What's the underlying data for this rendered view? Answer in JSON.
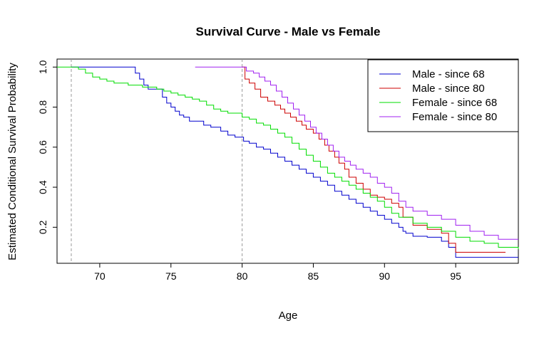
{
  "chart_data": {
    "type": "line",
    "title": "Survival Curve - Male vs Female",
    "xlabel": "Age",
    "ylabel": "Estimated Conditional Survival Probability",
    "xlim": [
      67,
      99.4
    ],
    "ylim": [
      0.02,
      1.04
    ],
    "x_ticks": [
      70,
      75,
      80,
      85,
      90,
      95
    ],
    "y_ticks": [
      0.2,
      0.4,
      0.6,
      0.8,
      1.0
    ],
    "x_tick_labels": [
      "70",
      "75",
      "80",
      "85",
      "90",
      "95"
    ],
    "y_tick_labels": [
      "0.2",
      "0.4",
      "0.6",
      "0.8",
      "1.0"
    ],
    "reference_lines": [
      68,
      80
    ],
    "legend_position": "top-right",
    "grid": false,
    "series": [
      {
        "name": "Male - since 68",
        "color": "#0000CD",
        "x": [
          68,
          72.5,
          72.8,
          73.1,
          73.4,
          74.4,
          74.7,
          75.0,
          75.3,
          75.6,
          75.9,
          76.3,
          77.3,
          77.8,
          78.5,
          79.0,
          79.5,
          80.1,
          80.5,
          81.0,
          81.5,
          82.0,
          82.5,
          83.0,
          83.5,
          84.0,
          84.5,
          85.0,
          85.5,
          86.0,
          86.5,
          87.0,
          87.5,
          88.0,
          88.5,
          89.0,
          89.5,
          90.0,
          90.5,
          91.0,
          91.3,
          91.5,
          92.0,
          93.0,
          94.0,
          94.5,
          95.0,
          99.4
        ],
        "y": [
          1.0,
          0.97,
          0.94,
          0.91,
          0.89,
          0.85,
          0.82,
          0.8,
          0.78,
          0.76,
          0.75,
          0.73,
          0.71,
          0.7,
          0.68,
          0.66,
          0.65,
          0.63,
          0.62,
          0.6,
          0.59,
          0.57,
          0.55,
          0.53,
          0.51,
          0.49,
          0.47,
          0.45,
          0.43,
          0.41,
          0.38,
          0.36,
          0.34,
          0.32,
          0.3,
          0.28,
          0.26,
          0.24,
          0.22,
          0.2,
          0.18,
          0.17,
          0.155,
          0.15,
          0.13,
          0.1,
          0.05,
          0.05
        ]
      },
      {
        "name": "Male - since 80",
        "color": "#CD0000",
        "x": [
          80,
          80.2,
          80.5,
          80.9,
          81.3,
          81.8,
          82.3,
          82.7,
          83.0,
          83.4,
          83.8,
          84.2,
          84.5,
          85.0,
          85.4,
          85.8,
          86.1,
          86.5,
          86.8,
          87.2,
          87.5,
          88.0,
          88.5,
          89.0,
          89.5,
          90.0,
          90.5,
          91.0,
          91.3,
          92.0,
          93.0,
          94.0,
          94.5,
          95.0,
          98.5
        ],
        "y": [
          1.0,
          0.94,
          0.92,
          0.89,
          0.85,
          0.83,
          0.81,
          0.79,
          0.77,
          0.75,
          0.73,
          0.71,
          0.69,
          0.67,
          0.64,
          0.61,
          0.58,
          0.55,
          0.52,
          0.49,
          0.45,
          0.42,
          0.39,
          0.36,
          0.35,
          0.34,
          0.32,
          0.3,
          0.25,
          0.21,
          0.19,
          0.17,
          0.12,
          0.075,
          0.075
        ]
      },
      {
        "name": "Female - since 68",
        "color": "#00DD00",
        "x": [
          67,
          68.5,
          69.0,
          69.5,
          70.0,
          70.5,
          71.0,
          72.0,
          73.0,
          74.0,
          74.5,
          75.0,
          75.5,
          76.0,
          76.5,
          77.0,
          77.5,
          78.0,
          78.5,
          79.0,
          80.0,
          80.5,
          81.0,
          81.5,
          82.0,
          82.5,
          83.0,
          83.5,
          84.0,
          84.5,
          85.0,
          85.5,
          86.0,
          86.5,
          87.0,
          87.5,
          88.0,
          88.5,
          89.0,
          89.5,
          90.0,
          90.5,
          91.0,
          92.0,
          93.0,
          94.0,
          95.0,
          96.0,
          97.0,
          98.0,
          99.4
        ],
        "y": [
          1.0,
          0.99,
          0.97,
          0.95,
          0.94,
          0.93,
          0.92,
          0.91,
          0.9,
          0.89,
          0.88,
          0.87,
          0.86,
          0.85,
          0.84,
          0.83,
          0.81,
          0.79,
          0.78,
          0.77,
          0.75,
          0.74,
          0.72,
          0.71,
          0.69,
          0.67,
          0.65,
          0.62,
          0.59,
          0.56,
          0.53,
          0.5,
          0.47,
          0.45,
          0.43,
          0.41,
          0.39,
          0.37,
          0.35,
          0.33,
          0.3,
          0.27,
          0.25,
          0.22,
          0.2,
          0.18,
          0.15,
          0.13,
          0.12,
          0.1,
          0.09
        ]
      },
      {
        "name": "Female - since 80",
        "color": "#A020F0",
        "x": [
          76.7,
          80,
          80.3,
          80.8,
          81.2,
          81.6,
          82.0,
          82.4,
          82.8,
          83.2,
          83.6,
          84.0,
          84.4,
          84.8,
          85.2,
          85.6,
          86.0,
          86.4,
          86.8,
          87.2,
          87.6,
          88.0,
          88.5,
          89.0,
          89.5,
          90.0,
          90.5,
          91.0,
          91.5,
          92.0,
          93.0,
          94.0,
          95.0,
          96.0,
          97.0,
          98.0,
          99.4
        ],
        "y": [
          1.0,
          1.0,
          0.98,
          0.97,
          0.95,
          0.93,
          0.91,
          0.88,
          0.85,
          0.82,
          0.79,
          0.76,
          0.73,
          0.7,
          0.67,
          0.64,
          0.61,
          0.58,
          0.55,
          0.53,
          0.51,
          0.49,
          0.47,
          0.45,
          0.42,
          0.4,
          0.37,
          0.33,
          0.3,
          0.28,
          0.26,
          0.24,
          0.21,
          0.18,
          0.16,
          0.14,
          0.14
        ]
      }
    ]
  }
}
